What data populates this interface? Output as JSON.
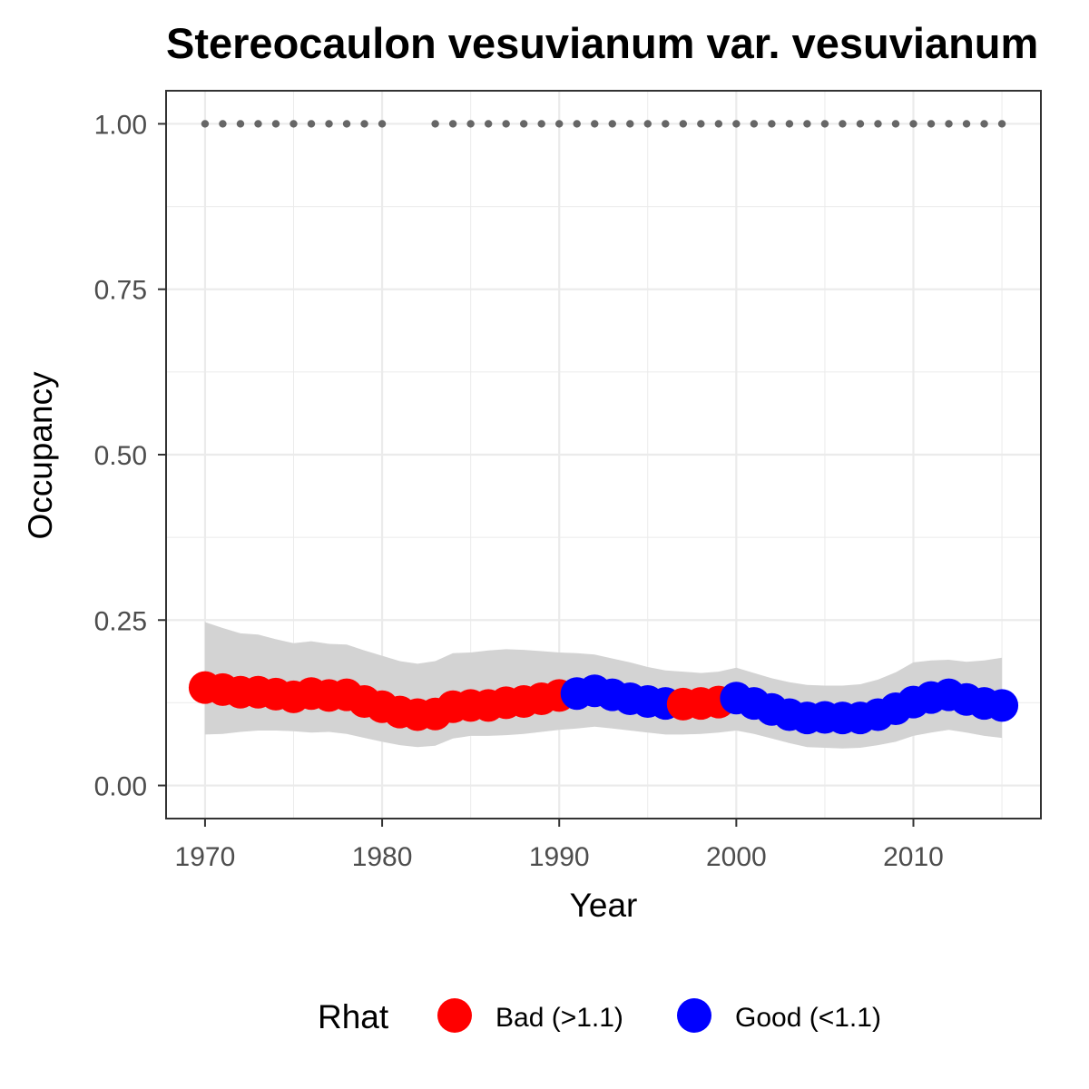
{
  "chart_data": {
    "type": "line",
    "title": "Stereocaulon vesuvianum var. vesuvianum",
    "xlabel": "Year",
    "ylabel": "Occupancy",
    "xlim": [
      1967.8,
      2017.2
    ],
    "ylim": [
      -0.05,
      1.05
    ],
    "x_ticks": [
      1970,
      1980,
      1990,
      2000,
      2010
    ],
    "x_tick_labels": [
      "1970",
      "1980",
      "1990",
      "2000",
      "2010"
    ],
    "y_ticks": [
      0.0,
      0.25,
      0.5,
      0.75,
      1.0
    ],
    "y_tick_labels": [
      "0.00",
      "0.25",
      "0.50",
      "0.75",
      "1.00"
    ],
    "grid": true,
    "colors": {
      "bad": "#ff0000",
      "good": "#0000ff",
      "ribbon": "#d3d3d3",
      "records": "#666666",
      "panel_border": "#333333",
      "grid": "#ebebeb"
    },
    "legend": {
      "title": "Rhat",
      "position": "bottom",
      "entries": [
        {
          "key": "bad",
          "label": "Bad (>1.1)"
        },
        {
          "key": "good",
          "label": "Good (<1.1)"
        }
      ]
    },
    "years": [
      1970,
      1971,
      1972,
      1973,
      1974,
      1975,
      1976,
      1977,
      1978,
      1979,
      1980,
      1981,
      1982,
      1983,
      1984,
      1985,
      1986,
      1987,
      1988,
      1989,
      1990,
      1991,
      1992,
      1993,
      1994,
      1995,
      1996,
      1997,
      1998,
      1999,
      2000,
      2001,
      2002,
      2003,
      2004,
      2005,
      2006,
      2007,
      2008,
      2009,
      2010,
      2011,
      2012,
      2013,
      2014,
      2015
    ],
    "occupancy": [
      0.148,
      0.145,
      0.141,
      0.141,
      0.138,
      0.134,
      0.139,
      0.136,
      0.137,
      0.127,
      0.119,
      0.111,
      0.107,
      0.108,
      0.119,
      0.121,
      0.121,
      0.125,
      0.127,
      0.131,
      0.136,
      0.139,
      0.143,
      0.137,
      0.131,
      0.127,
      0.124,
      0.123,
      0.124,
      0.126,
      0.132,
      0.124,
      0.115,
      0.107,
      0.102,
      0.103,
      0.102,
      0.102,
      0.107,
      0.116,
      0.126,
      0.133,
      0.137,
      0.13,
      0.124,
      0.121
    ],
    "lower": [
      0.077,
      0.078,
      0.081,
      0.083,
      0.083,
      0.082,
      0.08,
      0.081,
      0.078,
      0.072,
      0.066,
      0.061,
      0.058,
      0.06,
      0.071,
      0.075,
      0.075,
      0.076,
      0.078,
      0.081,
      0.084,
      0.086,
      0.089,
      0.086,
      0.083,
      0.08,
      0.077,
      0.077,
      0.078,
      0.08,
      0.083,
      0.078,
      0.071,
      0.064,
      0.058,
      0.057,
      0.056,
      0.057,
      0.061,
      0.066,
      0.075,
      0.08,
      0.084,
      0.08,
      0.075,
      0.072
    ],
    "upper": [
      0.247,
      0.238,
      0.23,
      0.228,
      0.221,
      0.215,
      0.218,
      0.214,
      0.213,
      0.204,
      0.196,
      0.188,
      0.184,
      0.188,
      0.2,
      0.201,
      0.204,
      0.206,
      0.205,
      0.203,
      0.201,
      0.2,
      0.198,
      0.192,
      0.186,
      0.179,
      0.174,
      0.172,
      0.17,
      0.172,
      0.178,
      0.17,
      0.162,
      0.156,
      0.152,
      0.151,
      0.151,
      0.153,
      0.16,
      0.171,
      0.186,
      0.189,
      0.19,
      0.187,
      0.189,
      0.193
    ],
    "rhat": [
      "bad",
      "bad",
      "bad",
      "bad",
      "bad",
      "bad",
      "bad",
      "bad",
      "bad",
      "bad",
      "bad",
      "bad",
      "bad",
      "bad",
      "bad",
      "bad",
      "bad",
      "bad",
      "bad",
      "bad",
      "bad",
      "good",
      "good",
      "good",
      "good",
      "good",
      "good",
      "bad",
      "bad",
      "bad",
      "good",
      "good",
      "good",
      "good",
      "good",
      "good",
      "good",
      "good",
      "good",
      "good",
      "good",
      "good",
      "good",
      "good",
      "good",
      "good"
    ],
    "record_years": [
      1970,
      1971,
      1972,
      1973,
      1974,
      1975,
      1976,
      1977,
      1978,
      1979,
      1980,
      1983,
      1984,
      1985,
      1986,
      1987,
      1988,
      1989,
      1990,
      1991,
      1992,
      1993,
      1994,
      1995,
      1996,
      1997,
      1998,
      1999,
      2000,
      2001,
      2002,
      2003,
      2004,
      2005,
      2006,
      2007,
      2008,
      2009,
      2010,
      2011,
      2012,
      2013,
      2014,
      2015
    ],
    "record_value": 1.0
  }
}
